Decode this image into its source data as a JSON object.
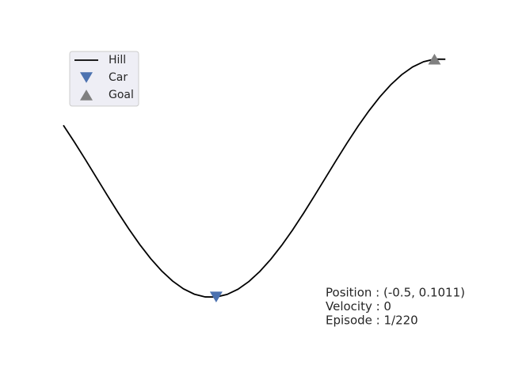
{
  "chart_data": {
    "type": "line",
    "xlim": [
      -1.2,
      0.6
    ],
    "ylim": [
      -0.04,
      1.05
    ],
    "legend": "upper left",
    "series": [
      {
        "name": "Hill",
        "type": "line",
        "color": "#000000",
        "x": [
          -1.2,
          -1.15,
          -1.1,
          -1.05,
          -1.0,
          -0.95,
          -0.9,
          -0.85,
          -0.8,
          -0.75,
          -0.7,
          -0.65,
          -0.6,
          -0.55,
          -0.5,
          -0.45,
          -0.4,
          -0.35,
          -0.3,
          -0.25,
          -0.2,
          -0.15,
          -0.1,
          -0.05,
          0,
          0.05,
          0.1,
          0.15,
          0.2,
          0.25,
          0.3,
          0.35,
          0.4,
          0.45,
          0.5,
          0.55
        ],
        "values": [
          0.7491,
          0.6866,
          0.621,
          0.5538,
          0.4865,
          0.4206,
          0.3577,
          0.299,
          0.246,
          0.1999,
          0.1616,
          0.132,
          0.1118,
          0.1014,
          0.1011,
          0.1109,
          0.1306,
          0.1597,
          0.1975,
          0.2433,
          0.2959,
          0.3542,
          0.417,
          0.4828,
          0.55,
          0.6172,
          0.683,
          0.7458,
          0.8041,
          0.8567,
          0.9025,
          0.9403,
          0.9694,
          0.9891,
          0.9989,
          0.9986
        ]
      },
      {
        "name": "Car",
        "type": "marker",
        "marker": "down",
        "color": "#4c72b0",
        "x": [
          -0.5
        ],
        "values": [
          0.1011
        ]
      },
      {
        "name": "Goal",
        "type": "marker",
        "marker": "up",
        "color": "#808080",
        "x": [
          0.5
        ],
        "values": [
          0.9989
        ]
      }
    ],
    "annotations": [
      "Position : (-0.5, 0.1011)",
      "Velocity : 0",
      "Episode : 1/220"
    ]
  }
}
